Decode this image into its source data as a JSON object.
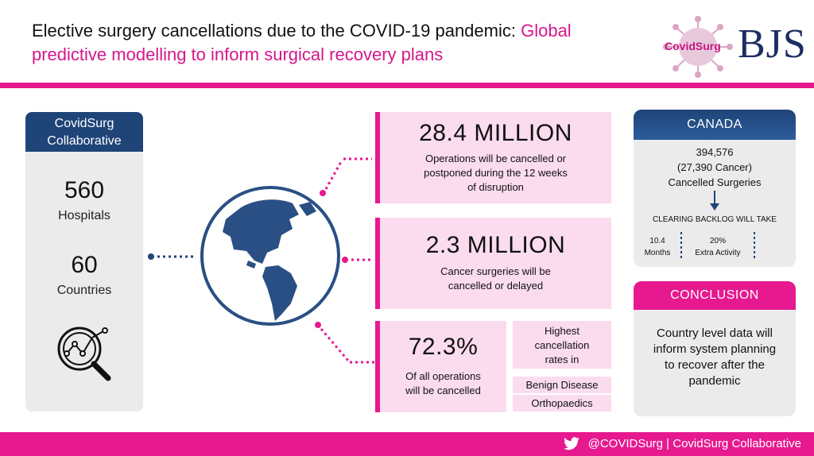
{
  "header": {
    "title_part1": "Elective surgery cancellations due to the COVID-19 pandemic: ",
    "title_part2": "Global predictive modelling to inform surgical recovery plans",
    "logo_covidsurg": "CovidSurg",
    "logo_bjs": "BJS"
  },
  "colors": {
    "accent_pink": "#e6198f",
    "navy": "#1f4478",
    "light_pink": "#fbdcef",
    "card_grey": "#ebebeb"
  },
  "left_card": {
    "heading_line1": "CovidSurg",
    "heading_line2": "Collaborative",
    "stat1_value": "560",
    "stat1_label": "Hospitals",
    "stat2_value": "60",
    "stat2_label": "Countries",
    "icon": "magnifier-chart-icon"
  },
  "globe_icon": "globe-americas-icon",
  "box1": {
    "value": "28.4 MILLION",
    "line1": "Operations will be cancelled or",
    "line2": "postponed during the 12 weeks",
    "line3": "of disruption"
  },
  "box2": {
    "value": "2.3 MILLION",
    "line1": "Cancer surgeries will be",
    "line2": "cancelled or delayed"
  },
  "box3": {
    "value": "72.3%",
    "line1": "Of all operations",
    "line2": "will be cancelled"
  },
  "box4": {
    "line1": "Highest",
    "line2": "cancellation",
    "line3": "rates in",
    "tag1": "Benign Disease",
    "tag2": "Orthopaedics"
  },
  "canada": {
    "heading": "CANADA",
    "line1": "394,576",
    "line2": "(27,390 Cancer)",
    "line3": "Cancelled Surgeries",
    "clearing": "CLEARING BACKLOG WILL TAKE",
    "months_value": "10.4",
    "months_label": "Months",
    "activity_value": "20%",
    "activity_label": "Extra Activity"
  },
  "conclusion": {
    "heading": "CONCLUSION",
    "line1": "Country level data will",
    "line2": "inform system planning",
    "line3": "to recover after the",
    "line4": "pandemic"
  },
  "footer": {
    "text": "@COVIDSurg | CovidSurg Collaborative",
    "icon": "twitter-icon"
  }
}
